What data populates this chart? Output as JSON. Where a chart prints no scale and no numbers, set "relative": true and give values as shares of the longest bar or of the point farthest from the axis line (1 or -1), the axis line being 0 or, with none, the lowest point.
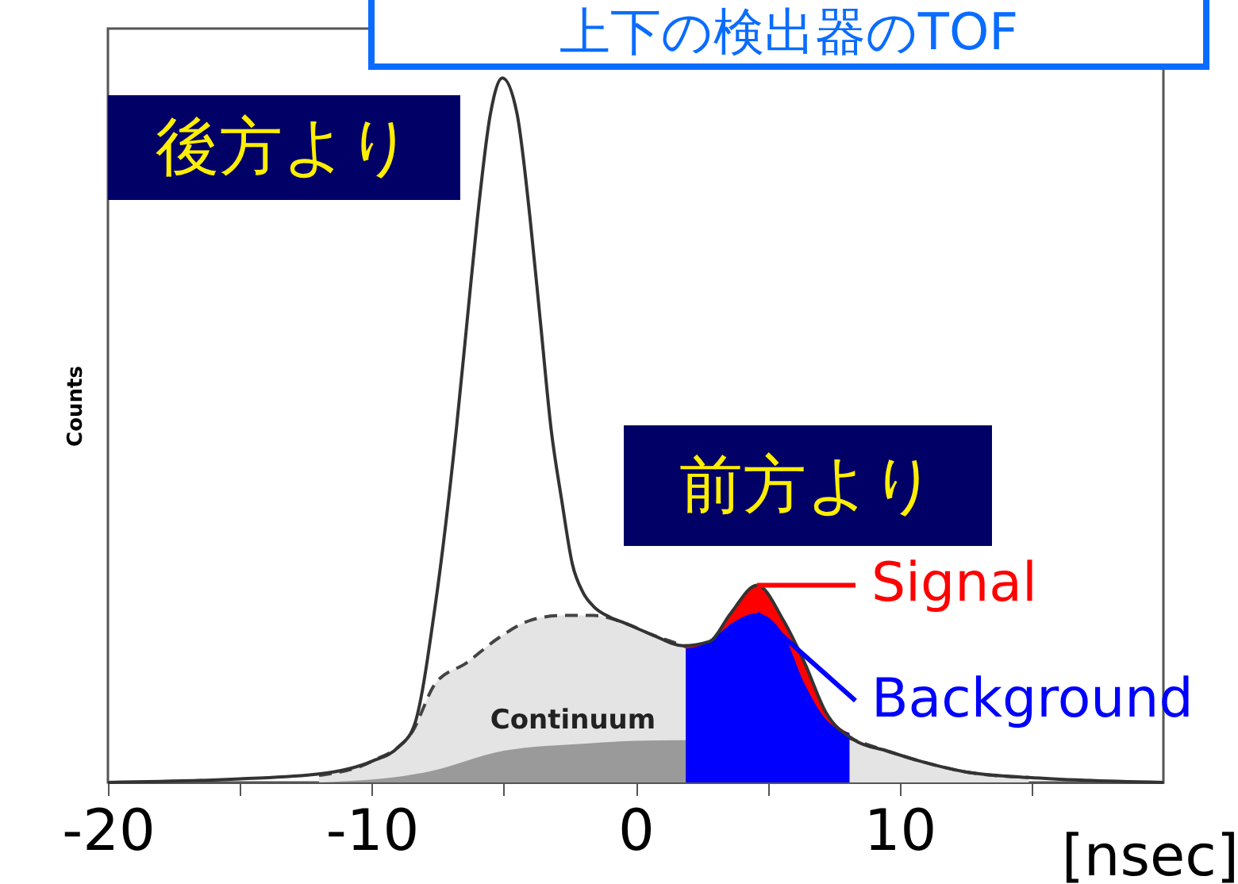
{
  "chart_data": {
    "type": "area",
    "title": "上下の検出器のTOF",
    "xlabel": "[nsec]",
    "ylabel": "Counts",
    "relative": true,
    "xlim": [
      -20,
      20
    ],
    "xticks": [
      -20,
      {
        "value": -15,
        "label": null
      },
      -10,
      {
        "value": -5,
        "label": null
      },
      0,
      {
        "value": 5,
        "label": null
      },
      10,
      {
        "value": 15,
        "label": null
      }
    ],
    "grid": false,
    "legend": "right",
    "marker": "none",
    "annotations": [
      "後方より",
      "前方より",
      "Continuum"
    ],
    "series": [
      {
        "color": "#e4e4e4",
        "line_style": "dashed",
        "x": [
          -12,
          -10,
          -8.5,
          -7.6,
          -6.4,
          -5.2,
          -4,
          -2.8,
          -1.6,
          -0.4,
          0.6,
          1.8,
          8.3,
          9.5,
          10.8,
          12.5,
          14.9
        ],
        "values": [
          0.01,
          0.03,
          0.07,
          0.14,
          0.17,
          0.205,
          0.23,
          0.237,
          0.237,
          0.226,
          0.21,
          0.194,
          0.06,
          0.045,
          0.03,
          0.015,
          0.007
        ]
      },
      {
        "color": "#9a9a9a",
        "x": [
          -12,
          -8,
          -5,
          -2,
          0,
          1.9
        ],
        "values": [
          0,
          0.014,
          0.045,
          0.055,
          0.059,
          0.06
        ]
      },
      {
        "name": "Signal",
        "color": "#ff0000",
        "x": [
          1.9,
          2.8,
          3.6,
          4.6,
          5.6,
          6.4,
          7.2,
          8.1
        ],
        "values": [
          0.194,
          0.2,
          0.24,
          0.28,
          0.23,
          0.17,
          0.1,
          0.07
        ]
      },
      {
        "name": "Background",
        "color": "#0000ff",
        "x": [
          1.9,
          2.8,
          3.6,
          4.6,
          5.6,
          6.4,
          7.2,
          8.1
        ],
        "values": [
          0.19,
          0.2,
          0.225,
          0.24,
          0.21,
          0.14,
          0.09,
          0.07
        ]
      },
      {
        "type": "line",
        "color": "#333333",
        "line_style": "solid",
        "x": [
          -20,
          -15,
          -12,
          -10,
          -9,
          -8.4,
          -7.6,
          -6.8,
          -6.4,
          -6,
          -5.5,
          -5.05,
          -4.5,
          -4,
          -3.6,
          -3.2,
          -2.8,
          -2.4,
          -2,
          -1.6,
          -1,
          -0.4,
          0.6,
          1.8,
          2.8,
          3.6,
          4.6,
          5.6,
          6.4,
          7.2,
          8.3,
          9.5,
          10.8,
          12.5,
          14.9,
          17,
          20
        ],
        "values": [
          0,
          0.005,
          0.012,
          0.03,
          0.05,
          0.08,
          0.25,
          0.5,
          0.65,
          0.8,
          0.95,
          1,
          0.95,
          0.8,
          0.65,
          0.5,
          0.4,
          0.31,
          0.27,
          0.25,
          0.235,
          0.226,
          0.21,
          0.194,
          0.2,
          0.24,
          0.28,
          0.23,
          0.17,
          0.1,
          0.06,
          0.045,
          0.03,
          0.015,
          0.007,
          0.003,
          0
        ]
      }
    ]
  }
}
